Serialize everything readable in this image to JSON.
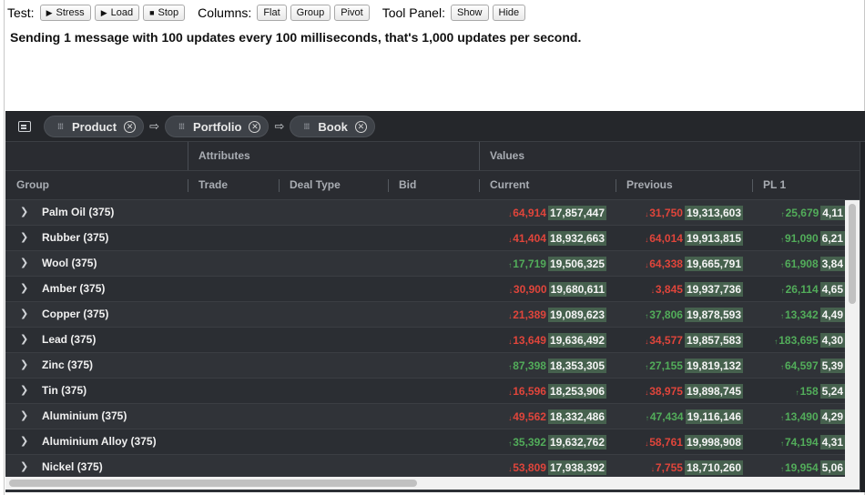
{
  "toolbar": {
    "test_label": "Test:",
    "stress_label": "Stress",
    "load_label": "Load",
    "stop_label": "Stop",
    "columns_label": "Columns:",
    "flat_label": "Flat",
    "group_label": "Group",
    "pivot_label": "Pivot",
    "tool_panel_label": "Tool Panel:",
    "show_label": "Show",
    "hide_label": "Hide"
  },
  "message": "Sending 1 message with 100 updates every 100 milliseconds, that's 1,000 updates per second.",
  "row_groups": [
    {
      "label": "Product"
    },
    {
      "label": "Portfolio"
    },
    {
      "label": "Book"
    }
  ],
  "header_groups": {
    "attributes": "Attributes",
    "values": "Values"
  },
  "columns": {
    "group": "Group",
    "trade": "Trade",
    "deal_type": "Deal Type",
    "bid": "Bid",
    "current": "Current",
    "previous": "Previous",
    "pl1": "PL 1"
  },
  "colors": {
    "grid_bg": "#2d3035",
    "up": "#52ac5a",
    "down": "#e0453b",
    "flash": "#46614e"
  },
  "rows": [
    {
      "group": "Palm Oil (375)",
      "current_delta": "64,914",
      "current_dir": "down",
      "current": "17,857,447",
      "previous_delta": "31,750",
      "previous_dir": "down",
      "previous": "19,313,603",
      "pl1_delta": "25,679",
      "pl1_dir": "up",
      "pl1": "4,11"
    },
    {
      "group": "Rubber (375)",
      "current_delta": "41,404",
      "current_dir": "down",
      "current": "18,932,663",
      "previous_delta": "64,014",
      "previous_dir": "down",
      "previous": "19,913,815",
      "pl1_delta": "91,090",
      "pl1_dir": "up",
      "pl1": "6,21"
    },
    {
      "group": "Wool (375)",
      "current_delta": "17,719",
      "current_dir": "up",
      "current": "19,506,325",
      "previous_delta": "64,338",
      "previous_dir": "down",
      "previous": "19,665,791",
      "pl1_delta": "61,908",
      "pl1_dir": "up",
      "pl1": "3,84"
    },
    {
      "group": "Amber (375)",
      "current_delta": "30,900",
      "current_dir": "down",
      "current": "19,680,611",
      "previous_delta": "3,845",
      "previous_dir": "down",
      "previous": "19,937,736",
      "pl1_delta": "26,114",
      "pl1_dir": "up",
      "pl1": "4,65"
    },
    {
      "group": "Copper (375)",
      "current_delta": "21,389",
      "current_dir": "down",
      "current": "19,089,623",
      "previous_delta": "37,806",
      "previous_dir": "up",
      "previous": "19,878,593",
      "pl1_delta": "13,342",
      "pl1_dir": "up",
      "pl1": "4,49"
    },
    {
      "group": "Lead (375)",
      "current_delta": "13,649",
      "current_dir": "down",
      "current": "19,636,492",
      "previous_delta": "34,577",
      "previous_dir": "down",
      "previous": "19,857,583",
      "pl1_delta": "183,695",
      "pl1_dir": "up",
      "pl1": "4,30"
    },
    {
      "group": "Zinc (375)",
      "current_delta": "87,398",
      "current_dir": "up",
      "current": "18,353,305",
      "previous_delta": "27,155",
      "previous_dir": "up",
      "previous": "19,819,132",
      "pl1_delta": "64,597",
      "pl1_dir": "up",
      "pl1": "5,39"
    },
    {
      "group": "Tin (375)",
      "current_delta": "16,596",
      "current_dir": "down",
      "current": "18,253,906",
      "previous_delta": "38,975",
      "previous_dir": "down",
      "previous": "19,898,745",
      "pl1_delta": "158",
      "pl1_dir": "up",
      "pl1": "5,24"
    },
    {
      "group": "Aluminium (375)",
      "current_delta": "49,562",
      "current_dir": "down",
      "current": "18,332,486",
      "previous_delta": "47,434",
      "previous_dir": "up",
      "previous": "19,116,146",
      "pl1_delta": "13,490",
      "pl1_dir": "up",
      "pl1": "4,29"
    },
    {
      "group": "Aluminium Alloy (375)",
      "current_delta": "35,392",
      "current_dir": "up",
      "current": "19,632,762",
      "previous_delta": "58,761",
      "previous_dir": "down",
      "previous": "19,998,908",
      "pl1_delta": "74,194",
      "pl1_dir": "up",
      "pl1": "4,31"
    },
    {
      "group": "Nickel (375)",
      "current_delta": "53,809",
      "current_dir": "down",
      "current": "17,938,392",
      "previous_delta": "7,755",
      "previous_dir": "down",
      "previous": "18,710,260",
      "pl1_delta": "19,954",
      "pl1_dir": "up",
      "pl1": "5,06"
    }
  ]
}
